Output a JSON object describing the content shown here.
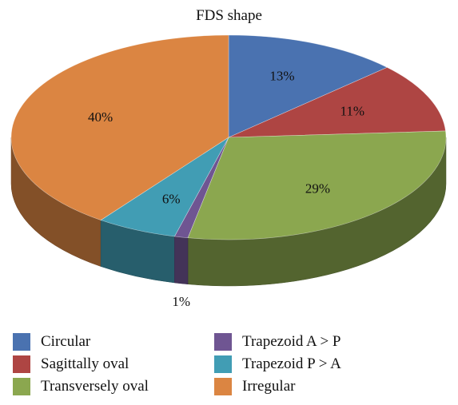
{
  "chart_data": {
    "type": "pie",
    "style": "3d",
    "title": "FDS shape",
    "legend_position": "bottom",
    "slices": [
      {
        "label": "Circular",
        "value": 13,
        "percent_label": "13%",
        "color": "#4a72b0"
      },
      {
        "label": "Sagittally oval",
        "value": 11,
        "percent_label": "11%",
        "color": "#ae4543"
      },
      {
        "label": "Transversely oval",
        "value": 29,
        "percent_label": "29%",
        "color": "#8ba74f"
      },
      {
        "label": "Trapezoid A > P",
        "value": 1,
        "percent_label": "1%",
        "color": "#6f5592"
      },
      {
        "label": "Trapezoid P > A",
        "value": 6,
        "percent_label": "6%",
        "color": "#419db4"
      },
      {
        "label": "Irregular",
        "value": 40,
        "percent_label": "40%",
        "color": "#db8542"
      }
    ]
  }
}
